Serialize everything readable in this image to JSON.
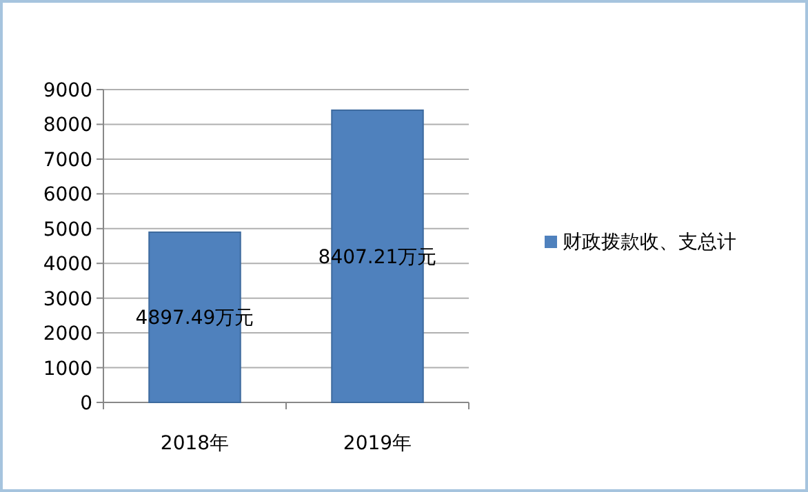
{
  "chart_data": {
    "type": "bar",
    "categories": [
      "2018年",
      "2019年"
    ],
    "series": [
      {
        "name": "财政拨款收、支总计",
        "color": "#4f81bd",
        "values": [
          4897.49,
          8407.21
        ],
        "value_labels": [
          "4897.49万元",
          "8407.21万元"
        ]
      }
    ],
    "ylim": [
      0,
      9000
    ],
    "yticks": [
      0,
      1000,
      2000,
      3000,
      4000,
      5000,
      6000,
      7000,
      8000,
      9000
    ],
    "grid": "y",
    "legend": "right"
  }
}
